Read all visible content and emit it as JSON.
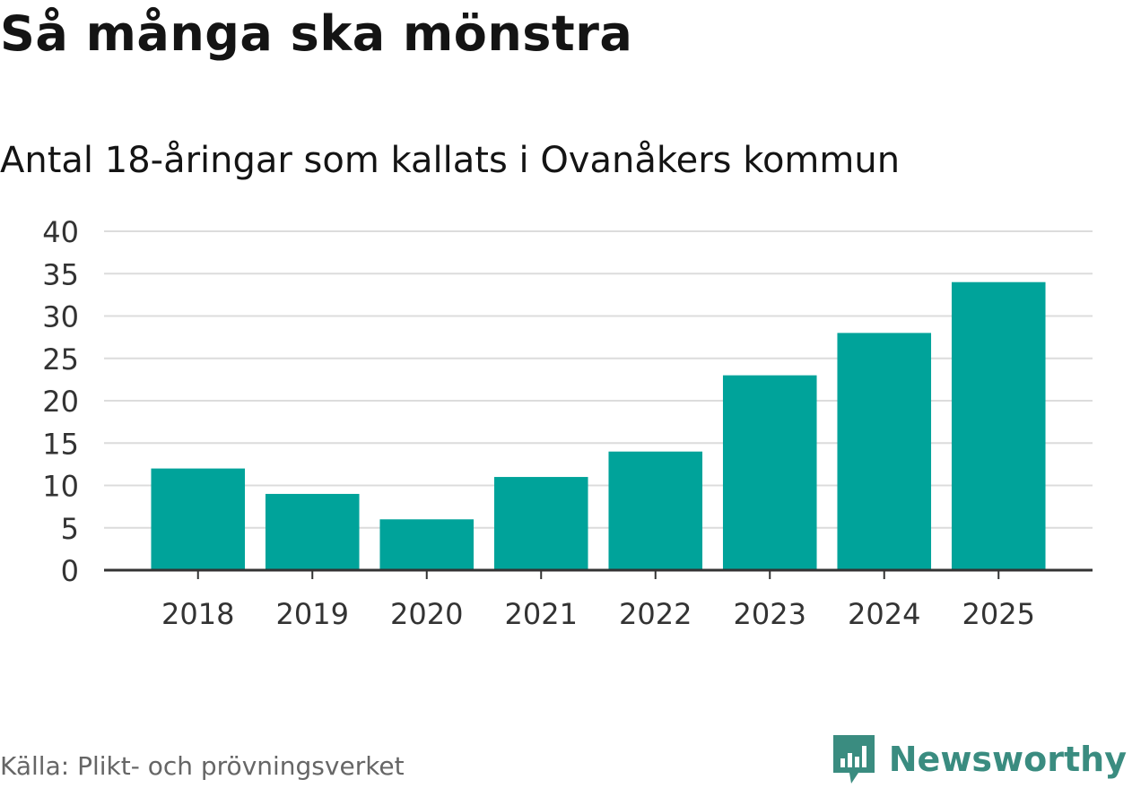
{
  "title": "Så många ska mönstra",
  "subtitle": "Antal 18-åringar som kallats i Ovanåkers kommun",
  "source": "Källa: Plikt- och prövningsverket",
  "brand": {
    "name": "Newsworthy",
    "icon": "newsworthy-logo-icon",
    "color": "#3a8c80"
  },
  "colors": {
    "bar": "#00a39a",
    "grid": "#dcdcdc",
    "axis": "#333333",
    "tick_text": "#333333"
  },
  "chart_data": {
    "type": "bar",
    "title": "Så många ska mönstra",
    "subtitle": "Antal 18-åringar som kallats i Ovanåkers kommun",
    "xlabel": "",
    "ylabel": "",
    "categories": [
      "2018",
      "2019",
      "2020",
      "2021",
      "2022",
      "2023",
      "2024",
      "2025"
    ],
    "values": [
      12,
      9,
      6,
      11,
      14,
      23,
      28,
      34
    ],
    "ylim": [
      0,
      40
    ],
    "yticks": [
      "0",
      "5",
      "10",
      "15",
      "20",
      "25",
      "30",
      "35",
      "40"
    ],
    "grid": true,
    "legend": "none"
  }
}
